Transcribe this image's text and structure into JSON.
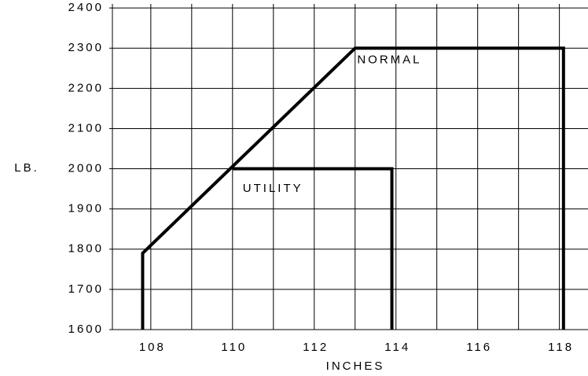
{
  "chart_data": {
    "type": "line",
    "x_label": "INCHES",
    "y_label": "LB.",
    "xlim": [
      107.06,
      118.7
    ],
    "ylim": [
      1600,
      2410
    ],
    "xticks": [
      108,
      110,
      112,
      114,
      116,
      118
    ],
    "xgrid": [
      109,
      111,
      113,
      115,
      117
    ],
    "yticks": [
      1600,
      1700,
      1800,
      1900,
      2000,
      2100,
      2200,
      2300,
      2400
    ],
    "grid": true,
    "series": [
      {
        "name": "NORMAL",
        "color": "#000000",
        "x": [
          107.8,
          107.8,
          113,
          118.1,
          118.1
        ],
        "values": [
          1600,
          1790,
          2300,
          2300,
          1600
        ],
        "label_at": [
          113.05,
          2270
        ]
      },
      {
        "name": "UTILITY",
        "color": "#000000",
        "x": [
          110,
          113.9,
          113.9
        ],
        "values": [
          2000,
          2000,
          1600
        ],
        "label_at": [
          110.25,
          1950
        ]
      }
    ]
  }
}
